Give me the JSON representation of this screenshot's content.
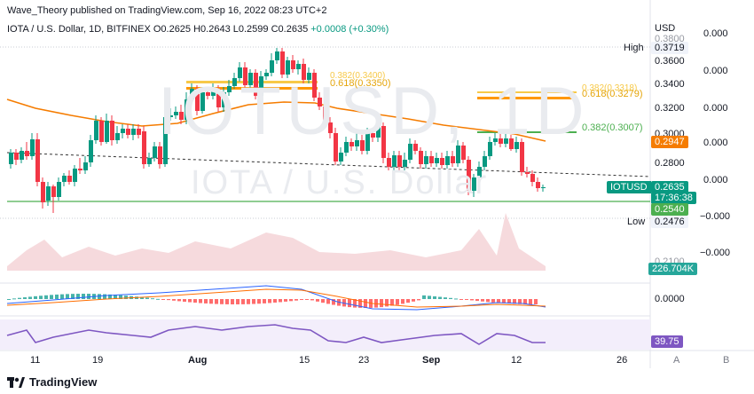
{
  "header": {
    "published": "Wave_Theory published on TradingView.com, Sep 16, 2022 08:23 UTC+2"
  },
  "legend": {
    "symbol": "IOTA / U.S. Dollar, 1D, BITFINEX",
    "open": "O0.2625",
    "high": "H0.2643",
    "low": "L0.2599",
    "close": "C0.2635",
    "change": "+0.0008 (+0.30%)"
  },
  "watermark": {
    "line1": "IOTUSD, 1D",
    "line2": "IOTA / U.S. Dollar"
  },
  "price_axis": {
    "currency": "USD",
    "ticks": [
      "0.3800",
      "0.3600",
      "0.3400",
      "0.3200",
      "0.3000",
      "0.2800"
    ],
    "high_label": "High",
    "high_value": "0.3719",
    "low_label": "Low",
    "low_value": "0.2476",
    "ema_value": "0.2947",
    "support_value": "0.2540",
    "current_symbol": "IOTUSD",
    "current_value": "0.2635",
    "countdown": "17:36:38",
    "volume_value": "226.704K",
    "partial_tick": "0.2100"
  },
  "fib_labels": {
    "fib_a_0618": "0.618(0.3350)",
    "fib_a_0382_partial": "0.382(0.3400)",
    "fib_b_0618": "0.618(0.3279)",
    "fib_b_0382_partial": "0.382(0.3318)",
    "fib_c_0382": "0.382(0.3007)"
  },
  "osc_axis": {
    "ticks": [
      "0.000",
      "0.000",
      "0.000",
      "0.000",
      "0.000",
      "−0.000",
      "−0.000"
    ],
    "macd_tick": "0.0000",
    "rsi_value": "39.75"
  },
  "time_axis": {
    "labels": [
      "11",
      "19",
      "Aug",
      "15",
      "23",
      "Sep",
      "12",
      "26"
    ]
  },
  "scale_buttons": {
    "auto": "A",
    "log": "B"
  },
  "footer": {
    "brand": "TradingView"
  },
  "colors": {
    "up": "#089981",
    "down": "#f23645",
    "ema": "#f57c00",
    "fib_yellow": "#f7c948",
    "fib_orange": "#ff9800",
    "fib_green": "#4caf50",
    "macd": "#2962ff",
    "signal": "#ff6d00",
    "rsi": "#7e57c2"
  }
}
